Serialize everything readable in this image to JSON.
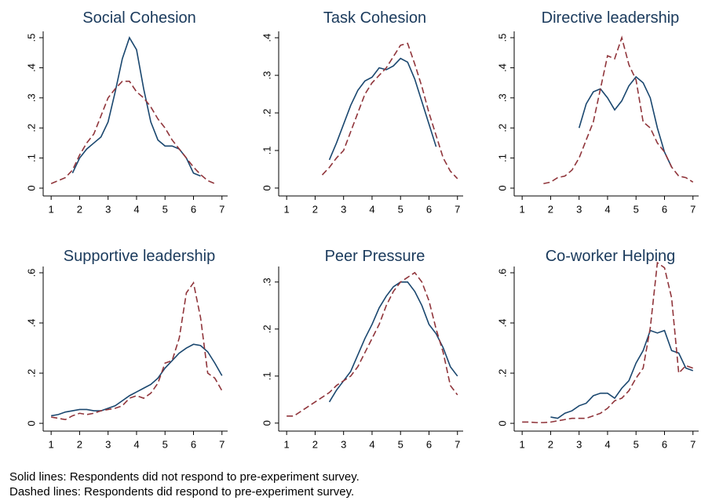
{
  "chart_data": [
    {
      "type": "line",
      "title": "Social Cohesion",
      "x": [
        1,
        1.25,
        1.5,
        1.75,
        2,
        2.25,
        2.5,
        2.75,
        3,
        3.25,
        3.5,
        3.75,
        4,
        4.25,
        4.5,
        4.75,
        5,
        5.25,
        5.5,
        5.75,
        6,
        6.25,
        6.5,
        6.75,
        7
      ],
      "xlim": [
        0.72,
        7.2
      ],
      "xticks": [
        1,
        2,
        3,
        4,
        5,
        6,
        7
      ],
      "ylim": [
        -0.026,
        0.521
      ],
      "yticks": [
        0,
        {
          "value": 0.1,
          "label": ".1"
        },
        {
          "value": 0.2,
          "label": ".2"
        },
        {
          "value": 0.3,
          "label": ".3"
        },
        {
          "value": 0.4,
          "label": ".4"
        },
        {
          "value": 0.5,
          "label": ".5"
        }
      ],
      "series": [
        {
          "color": "#1a476f",
          "dash": "solid",
          "values": [
            null,
            null,
            null,
            0.05,
            0.1,
            0.13,
            0.15,
            0.17,
            0.22,
            0.32,
            0.43,
            0.5,
            0.46,
            0.33,
            0.22,
            0.16,
            0.14,
            0.14,
            0.13,
            0.1,
            0.05,
            0.04,
            null,
            null,
            null
          ]
        },
        {
          "color": "#90353b",
          "dash": "dashed",
          "values": [
            0.015,
            0.025,
            0.035,
            0.06,
            0.11,
            0.15,
            0.18,
            0.24,
            0.3,
            0.33,
            0.355,
            0.355,
            0.32,
            0.3,
            0.27,
            0.23,
            0.2,
            0.16,
            0.13,
            0.1,
            0.07,
            0.045,
            0.025,
            0.015,
            null
          ]
        }
      ]
    },
    {
      "type": "line",
      "title": "Task Cohesion",
      "x": [
        1,
        1.25,
        1.5,
        1.75,
        2,
        2.25,
        2.5,
        2.75,
        3,
        3.25,
        3.5,
        3.75,
        4,
        4.25,
        4.5,
        4.75,
        5,
        5.25,
        5.5,
        5.75,
        6,
        6.25,
        6.5,
        6.75,
        7
      ],
      "xlim": [
        0.72,
        7.2
      ],
      "xticks": [
        1,
        2,
        3,
        4,
        5,
        6,
        7
      ],
      "ylim": [
        -0.021,
        0.417
      ],
      "yticks": [
        0,
        {
          "value": 0.1,
          "label": ".1"
        },
        {
          "value": 0.2,
          "label": ".2"
        },
        {
          "value": 0.3,
          "label": ".3"
        },
        {
          "value": 0.4,
          "label": ".4"
        }
      ],
      "series": [
        {
          "color": "#1a476f",
          "dash": "solid",
          "values": [
            null,
            null,
            null,
            null,
            null,
            null,
            0.075,
            0.12,
            0.17,
            0.22,
            0.26,
            0.285,
            0.295,
            0.32,
            0.315,
            0.325,
            0.345,
            0.335,
            0.29,
            0.23,
            0.17,
            0.11,
            null,
            null,
            null
          ]
        },
        {
          "color": "#90353b",
          "dash": "dashed",
          "values": [
            null,
            null,
            null,
            null,
            null,
            0.035,
            0.055,
            0.08,
            0.1,
            0.15,
            0.2,
            0.25,
            0.28,
            0.3,
            0.32,
            0.35,
            0.38,
            0.385,
            0.33,
            0.27,
            0.2,
            0.14,
            0.08,
            0.045,
            0.025
          ]
        }
      ]
    },
    {
      "type": "line",
      "title": "Directive leadership",
      "x": [
        1,
        1.25,
        1.5,
        1.75,
        2,
        2.25,
        2.5,
        2.75,
        3,
        3.25,
        3.5,
        3.75,
        4,
        4.25,
        4.5,
        4.75,
        5,
        5.25,
        5.5,
        5.75,
        6,
        6.25,
        6.5,
        6.75,
        7
      ],
      "xlim": [
        0.72,
        7.2
      ],
      "xticks": [
        1,
        2,
        3,
        4,
        5,
        6,
        7
      ],
      "ylim": [
        -0.026,
        0.521
      ],
      "yticks": [
        0,
        {
          "value": 0.1,
          "label": ".1"
        },
        {
          "value": 0.2,
          "label": ".2"
        },
        {
          "value": 0.3,
          "label": ".3"
        },
        {
          "value": 0.4,
          "label": ".4"
        },
        {
          "value": 0.5,
          "label": ".5"
        }
      ],
      "series": [
        {
          "color": "#1a476f",
          "dash": "solid",
          "values": [
            null,
            null,
            null,
            null,
            null,
            null,
            null,
            null,
            0.2,
            0.28,
            0.32,
            0.33,
            0.3,
            0.26,
            0.29,
            0.34,
            0.37,
            0.35,
            0.3,
            0.2,
            0.12,
            0.07,
            null,
            null,
            null
          ]
        },
        {
          "color": "#90353b",
          "dash": "dashed",
          "values": [
            null,
            null,
            null,
            0.015,
            0.02,
            0.035,
            0.04,
            0.06,
            0.1,
            0.16,
            0.22,
            0.33,
            0.44,
            0.43,
            0.5,
            0.41,
            0.36,
            0.22,
            0.2,
            0.15,
            0.12,
            0.07,
            0.04,
            0.035,
            0.02
          ]
        }
      ]
    },
    {
      "type": "line",
      "title": "Supportive leadership",
      "x": [
        1,
        1.25,
        1.5,
        1.75,
        2,
        2.25,
        2.5,
        2.75,
        3,
        3.25,
        3.5,
        3.75,
        4,
        4.25,
        4.5,
        4.75,
        5,
        5.25,
        5.5,
        5.75,
        6,
        6.25,
        6.5,
        6.75,
        7
      ],
      "xlim": [
        0.72,
        7.2
      ],
      "xticks": [
        1,
        2,
        3,
        4,
        5,
        6,
        7
      ],
      "ylim": [
        -0.031,
        0.625
      ],
      "yticks": [
        0,
        {
          "value": 0.2,
          "label": ".2"
        },
        {
          "value": 0.4,
          "label": ".4"
        },
        {
          "value": 0.6,
          "label": ".6"
        }
      ],
      "series": [
        {
          "color": "#1a476f",
          "dash": "solid",
          "values": [
            0.03,
            0.035,
            0.045,
            0.05,
            0.055,
            0.055,
            0.05,
            0.05,
            0.06,
            0.07,
            0.09,
            0.11,
            0.125,
            0.14,
            0.155,
            0.18,
            0.22,
            0.25,
            0.28,
            0.3,
            0.315,
            0.31,
            0.285,
            0.24,
            0.19
          ]
        },
        {
          "color": "#90353b",
          "dash": "dashed",
          "values": [
            0.025,
            0.02,
            0.015,
            0.03,
            0.04,
            0.035,
            0.04,
            0.05,
            0.055,
            0.06,
            0.07,
            0.1,
            0.11,
            0.1,
            0.12,
            0.16,
            0.24,
            0.25,
            0.34,
            0.52,
            0.56,
            0.42,
            0.2,
            0.18,
            0.13
          ]
        }
      ]
    },
    {
      "type": "line",
      "title": "Peer Pressure",
      "x": [
        1,
        1.25,
        1.5,
        1.75,
        2,
        2.25,
        2.5,
        2.75,
        3,
        3.25,
        3.5,
        3.75,
        4,
        4.25,
        4.5,
        4.75,
        5,
        5.25,
        5.5,
        5.75,
        6,
        6.25,
        6.5,
        6.75,
        7
      ],
      "xlim": [
        0.72,
        7.2
      ],
      "xticks": [
        1,
        2,
        3,
        4,
        5,
        6,
        7
      ],
      "ylim": [
        -0.017,
        0.333
      ],
      "yticks": [
        0,
        {
          "value": 0.1,
          "label": ".1"
        },
        {
          "value": 0.2,
          "label": ".2"
        },
        {
          "value": 0.3,
          "label": ".3"
        }
      ],
      "series": [
        {
          "color": "#1a476f",
          "dash": "solid",
          "values": [
            null,
            null,
            null,
            null,
            null,
            null,
            0.045,
            0.07,
            0.09,
            0.11,
            0.145,
            0.18,
            0.21,
            0.245,
            0.27,
            0.29,
            0.3,
            0.3,
            0.28,
            0.25,
            0.21,
            0.19,
            0.16,
            0.12,
            0.1
          ]
        },
        {
          "color": "#90353b",
          "dash": "dashed",
          "values": [
            0.015,
            0.015,
            0.025,
            0.035,
            0.045,
            0.055,
            0.065,
            0.08,
            0.09,
            0.1,
            0.12,
            0.15,
            0.18,
            0.21,
            0.25,
            0.28,
            0.3,
            0.31,
            0.32,
            0.3,
            0.26,
            0.2,
            0.15,
            0.08,
            0.06
          ]
        }
      ]
    },
    {
      "type": "line",
      "title": "Co-worker Helping",
      "x": [
        1,
        1.25,
        1.5,
        1.75,
        2,
        2.25,
        2.5,
        2.75,
        3,
        3.25,
        3.5,
        3.75,
        4,
        4.25,
        4.5,
        4.75,
        5,
        5.25,
        5.5,
        5.75,
        6,
        6.25,
        6.5,
        6.75,
        7
      ],
      "xlim": [
        0.72,
        7.2
      ],
      "xticks": [
        1,
        2,
        3,
        4,
        5,
        6,
        7
      ],
      "ylim": [
        -0.031,
        0.625
      ],
      "yticks": [
        0,
        {
          "value": 0.2,
          "label": ".2"
        },
        {
          "value": 0.4,
          "label": ".4"
        },
        {
          "value": 0.6,
          "label": ".6"
        }
      ],
      "series": [
        {
          "color": "#1a476f",
          "dash": "solid",
          "values": [
            null,
            null,
            null,
            null,
            0.025,
            0.02,
            0.04,
            0.05,
            0.07,
            0.08,
            0.11,
            0.12,
            0.12,
            0.1,
            0.14,
            0.17,
            0.24,
            0.29,
            0.37,
            0.36,
            0.37,
            0.29,
            0.28,
            0.22,
            0.21
          ]
        },
        {
          "color": "#90353b",
          "dash": "dashed",
          "values": [
            0.005,
            0.005,
            0.003,
            0.003,
            0.005,
            0.01,
            0.015,
            0.02,
            0.02,
            0.02,
            0.03,
            0.04,
            0.06,
            0.09,
            0.1,
            0.13,
            0.18,
            0.22,
            0.38,
            0.64,
            0.62,
            0.5,
            0.2,
            0.23,
            0.22
          ]
        }
      ]
    }
  ],
  "notes": [
    "Solid lines: Respondents did not respond to pre-experiment survey.",
    "Dashed lines: Respondents did respond to pre-experiment survey."
  ]
}
